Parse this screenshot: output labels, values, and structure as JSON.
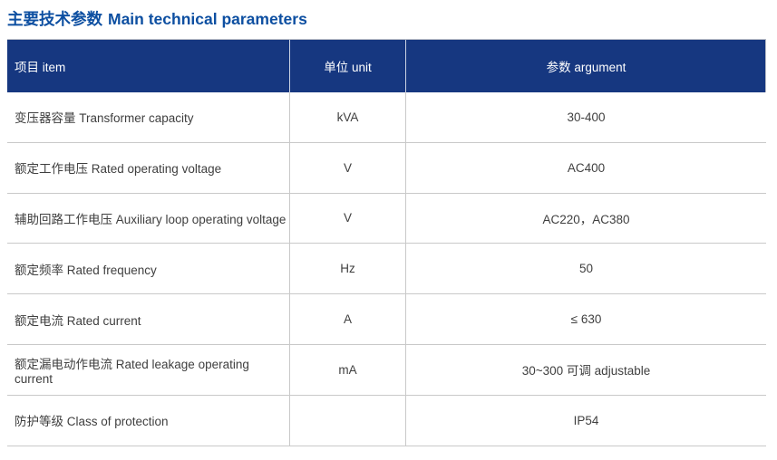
{
  "title": {
    "zh": "主要技术参数",
    "en": "Main technical parameters"
  },
  "colors": {
    "title_text": "#0d4fa1",
    "header_bg": "#163780",
    "header_text": "#ffffff",
    "body_text": "#3f3f3f",
    "divider": "#c9c9c9"
  },
  "table": {
    "header": {
      "columns": [
        {
          "id": "item",
          "label": "项目 item",
          "align": "left"
        },
        {
          "id": "unit",
          "label": "单位 unit",
          "align": "center"
        },
        {
          "id": "argument",
          "label": "参数 argument",
          "align": "center"
        }
      ]
    },
    "rows": [
      {
        "item": "变压器容量 Transformer capacity",
        "unit": "kVA",
        "argument": "30-400"
      },
      {
        "item": "额定工作电压 Rated operating voltage",
        "unit": "V",
        "argument": "AC400"
      },
      {
        "item": "辅助回路工作电压 Auxiliary loop operating voltage",
        "unit": "V",
        "argument": "AC220，AC380"
      },
      {
        "item": "额定频率 Rated frequency",
        "unit": "Hz",
        "argument": "50"
      },
      {
        "item": "额定电流 Rated current",
        "unit": "A",
        "argument": "≤ 630"
      },
      {
        "item": "额定漏电动作电流 Rated leakage operating current",
        "unit": "mA",
        "argument": "30~300 可调 adjustable"
      },
      {
        "item": "防护等级 Class of protection",
        "unit": "",
        "argument": "IP54"
      }
    ]
  }
}
